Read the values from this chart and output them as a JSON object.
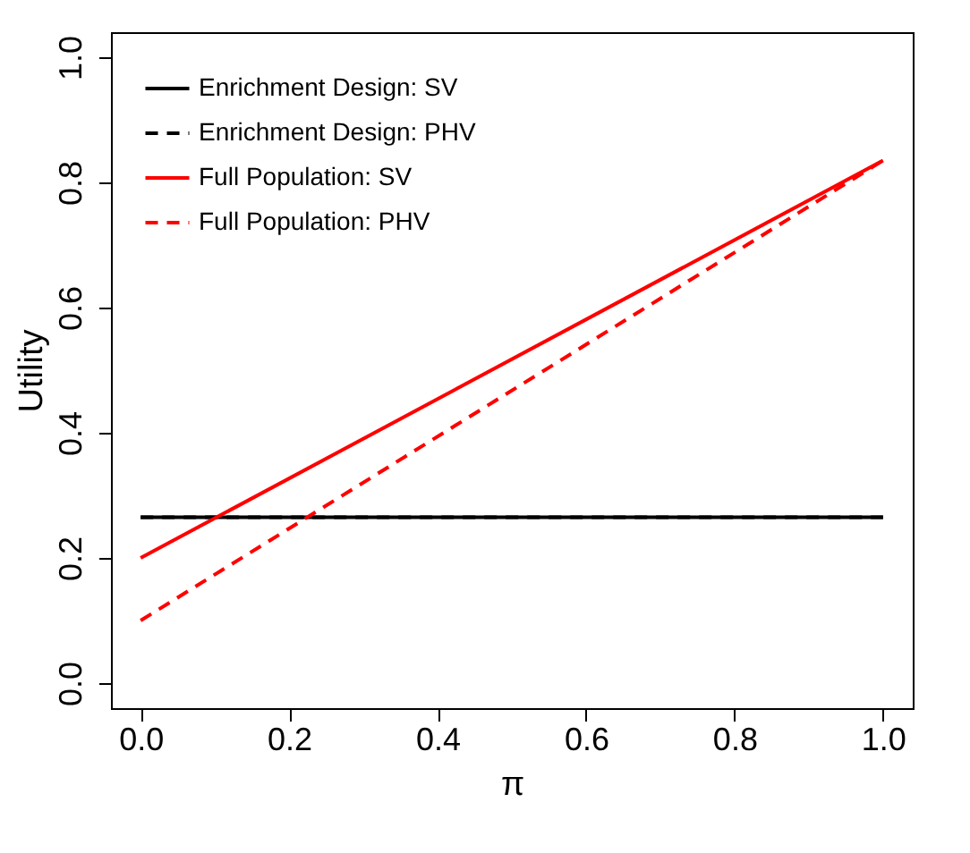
{
  "chart_data": {
    "type": "line",
    "xlabel": "π",
    "ylabel": "Utility",
    "x": [
      0,
      1
    ],
    "xlim": [
      -0.04,
      1.04
    ],
    "ylim": [
      -0.04,
      1.04
    ],
    "xticks": [
      {
        "value": 0,
        "label": "0.0"
      },
      0.2,
      0.4,
      0.6,
      0.8,
      {
        "value": 1,
        "label": "1.0"
      }
    ],
    "yticks": [
      {
        "value": 0,
        "label": "0.0"
      },
      0.2,
      0.4,
      0.6,
      0.8,
      {
        "value": 1,
        "label": "1.0"
      }
    ],
    "legend": "top left",
    "grid": false,
    "series": [
      {
        "name": "Enrichment Design: SV",
        "color": "#000000",
        "line_style": "solid",
        "values": [
          0.265,
          0.265
        ]
      },
      {
        "name": "Enrichment Design: PHV",
        "color": "#000000",
        "line_style": "dashed",
        "values": [
          0.265,
          0.265
        ]
      },
      {
        "name": "Full Population: SV",
        "color": "#ff0000",
        "line_style": "solid",
        "values": [
          0.2,
          0.835
        ]
      },
      {
        "name": "Full Population: PHV",
        "color": "#ff0000",
        "line_style": "dashed",
        "values": [
          0.1,
          0.835
        ]
      }
    ]
  }
}
